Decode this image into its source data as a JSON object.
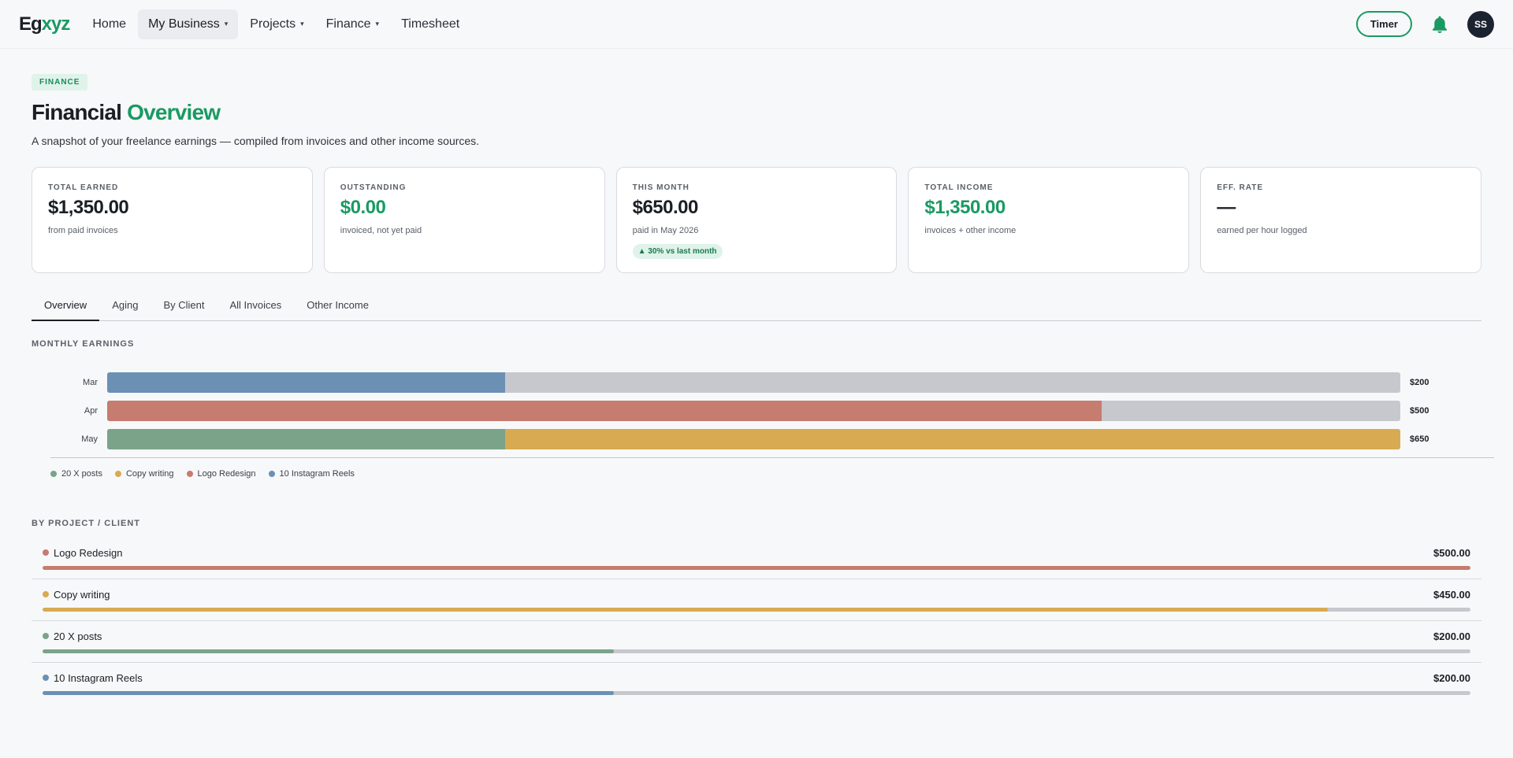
{
  "nav": {
    "logo_dark": "Eg",
    "logo_green": "xyz",
    "items": [
      {
        "label": "Home",
        "caret": false,
        "active": false
      },
      {
        "label": "My Business",
        "caret": true,
        "active": true
      },
      {
        "label": "Projects",
        "caret": true,
        "active": false
      },
      {
        "label": "Finance",
        "caret": true,
        "active": false
      },
      {
        "label": "Timesheet",
        "caret": false,
        "active": false
      }
    ],
    "caret_glyph": "▾",
    "timer_label": "Timer",
    "avatar_initials": "SS",
    "bell_icon": "bell-icon",
    "accent_color": "#1a9a63"
  },
  "header": {
    "tag": "FINANCE",
    "title_dark": "Financial",
    "title_green": "Overview",
    "subtitle": "A snapshot of your freelance earnings — compiled from invoices and other income sources."
  },
  "cards": [
    {
      "label": "TOTAL EARNED",
      "value": "$1,350.00",
      "sub": "from paid invoices",
      "green": false
    },
    {
      "label": "OUTSTANDING",
      "value": "$0.00",
      "sub": "invoiced, not yet paid",
      "green": true
    },
    {
      "label": "THIS MONTH",
      "value": "$650.00",
      "sub": "paid in May 2026",
      "green": false,
      "delta": "▲ 30% vs last month"
    },
    {
      "label": "TOTAL INCOME",
      "value": "$1,350.00",
      "sub": "invoices + other income",
      "green": true
    },
    {
      "label": "EFF. RATE",
      "value": "—",
      "sub": "earned per hour logged",
      "green": false
    }
  ],
  "tabs": [
    {
      "label": "Overview",
      "active": true
    },
    {
      "label": "Aging",
      "active": false
    },
    {
      "label": "By Client",
      "active": false
    },
    {
      "label": "All Invoices",
      "active": false
    },
    {
      "label": "Other Income",
      "active": false
    }
  ],
  "monthly_earnings": {
    "section_label": "MONTHLY EARNINGS",
    "max_value": 650,
    "months": [
      {
        "label": "Mar",
        "total": "$200",
        "segments": [
          {
            "project": "10 Instagram Reels",
            "value": 200
          }
        ]
      },
      {
        "label": "Apr",
        "total": "$500",
        "segments": [
          {
            "project": "Logo Redesign",
            "value": 500
          }
        ]
      },
      {
        "label": "May",
        "total": "$650",
        "segments": [
          {
            "project": "20 X posts",
            "value": 200
          },
          {
            "project": "Copy writing",
            "value": 450
          }
        ]
      }
    ],
    "legend": [
      {
        "label": "20 X posts",
        "color": "#7aa38a"
      },
      {
        "label": "Copy writing",
        "color": "#d8aa52"
      },
      {
        "label": "Logo Redesign",
        "color": "#c67c6e"
      },
      {
        "label": "10 Instagram Reels",
        "color": "#6b90b4"
      }
    ]
  },
  "by_project": {
    "section_label": "BY PROJECT / CLIENT",
    "max_value": 500,
    "items": [
      {
        "name": "Logo Redesign",
        "amount": "$500.00",
        "value": 500,
        "color": "#c67c6e"
      },
      {
        "name": "Copy writing",
        "amount": "$450.00",
        "value": 450,
        "color": "#d8aa52"
      },
      {
        "name": "20 X posts",
        "amount": "$200.00",
        "value": 200,
        "color": "#7aa38a"
      },
      {
        "name": "10 Instagram Reels",
        "amount": "$200.00",
        "value": 200,
        "color": "#6b90b4"
      }
    ]
  }
}
